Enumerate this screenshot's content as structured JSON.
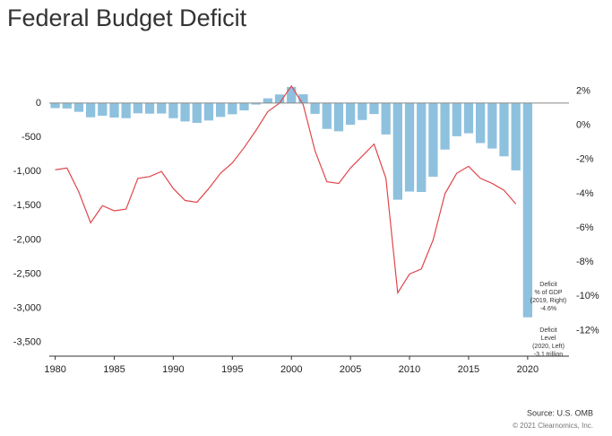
{
  "chart_data": {
    "type": "bar_line",
    "title": "Federal Budget Deficit",
    "x": [
      1980,
      1981,
      1982,
      1983,
      1984,
      1985,
      1986,
      1987,
      1988,
      1989,
      1990,
      1991,
      1992,
      1993,
      1994,
      1995,
      1996,
      1997,
      1998,
      1999,
      2000,
      2001,
      2002,
      2003,
      2004,
      2005,
      2006,
      2007,
      2008,
      2009,
      2010,
      2011,
      2012,
      2013,
      2014,
      2015,
      2016,
      2017,
      2018,
      2019,
      2020
    ],
    "xlim": [
      1979.5,
      2023.5
    ],
    "xticks": [
      1980,
      1985,
      1990,
      1995,
      2000,
      2005,
      2010,
      2015,
      2020
    ],
    "ylim": [
      -3700,
      300
    ],
    "yticks": [
      0,
      -500,
      {
        "value": -1000,
        "label": "-1,000"
      },
      {
        "value": -1500,
        "label": "-1,500"
      },
      {
        "value": -2000,
        "label": "-2,000"
      },
      {
        "value": -2500,
        "label": "-2,500"
      },
      {
        "value": -3000,
        "label": "-3,000"
      },
      {
        "value": -3500,
        "label": "-3,500"
      }
    ],
    "y2lim": [
      -13.5,
      2.5
    ],
    "y2ticks": [
      {
        "value": 2,
        "label": "2%"
      },
      {
        "value": 0,
        "label": "0%"
      },
      {
        "value": -2,
        "label": "-2%"
      },
      {
        "value": -4,
        "label": "-4%"
      },
      {
        "value": -6,
        "label": "-6%"
      },
      {
        "value": -8,
        "label": "-8%"
      },
      {
        "value": -10,
        "label": "-10%"
      },
      {
        "value": -12,
        "label": "-12%"
      }
    ],
    "series": [
      {
        "type": "bar",
        "color": "#8ec1de",
        "values": [
          -74,
          -79,
          -128,
          -208,
          -185,
          -212,
          -221,
          -150,
          -155,
          -153,
          -221,
          -269,
          -290,
          -255,
          -203,
          -164,
          -107,
          -22,
          69,
          126,
          236,
          128,
          -158,
          -378,
          -413,
          -318,
          -248,
          -161,
          -459,
          -1413,
          -1294,
          -1300,
          -1077,
          -680,
          -485,
          -442,
          -585,
          -665,
          -779,
          -984,
          -3132
        ]
      },
      {
        "type": "line",
        "axis": "y2",
        "color": "#e0474c",
        "values": [
          -2.6,
          -2.5,
          -3.9,
          -5.7,
          -4.7,
          -5.0,
          -4.9,
          -3.1,
          -3.0,
          -2.7,
          -3.7,
          -4.4,
          -4.5,
          -3.7,
          -2.8,
          -2.2,
          -1.3,
          -0.3,
          0.8,
          1.3,
          2.3,
          1.2,
          -1.5,
          -3.3,
          -3.4,
          -2.5,
          -1.8,
          -1.1,
          -3.1,
          -9.8,
          -8.7,
          -8.4,
          -6.7,
          -4.0,
          -2.8,
          -2.4,
          -3.1,
          -3.4,
          -3.8,
          -4.6,
          null
        ]
      }
    ],
    "annotations": [
      {
        "lines": [
          "Deficit",
          "% of GDP",
          "(2019, Right)",
          "-4.6%"
        ]
      },
      {
        "lines": [
          "Deficit",
          "Level",
          "(2020, Left)",
          "-3.1 trillion"
        ]
      }
    ],
    "source": "Source: U.S. OMB",
    "copyright": "© 2021 Clearnomics, Inc."
  }
}
